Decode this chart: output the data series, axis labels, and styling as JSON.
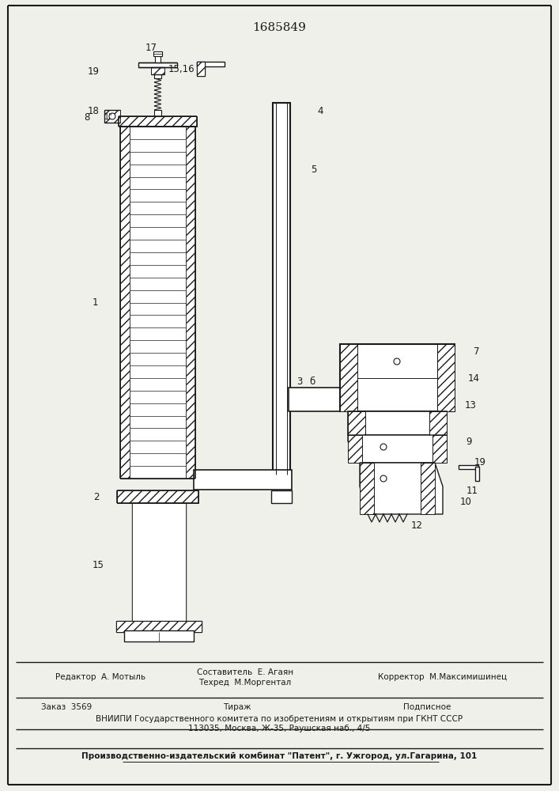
{
  "bg_color": "#f0f0eb",
  "line_color": "#1a1a1a",
  "title": "1685849",
  "footer": {
    "editor": "Редактор  А. Мотыль",
    "composer": "Составитель  Е. Агаян",
    "techred": "Техред  М.Моргентал",
    "corrector": "Корректор  М.Максимишинец",
    "order": "Заказ  3569",
    "tirazh": "Тираж",
    "podpis": "Подписное",
    "vniip1": "ВНИИПИ Государственного комитета по изобретениям и открытиям при ГКНТ СССР",
    "vniip2": "113035, Москва, Ж-35, Раушская наб., 4/5",
    "patent": "Производственно-издательский комбинат \"Патент\", г. Ужгород, ул.Гагарина, 101"
  }
}
